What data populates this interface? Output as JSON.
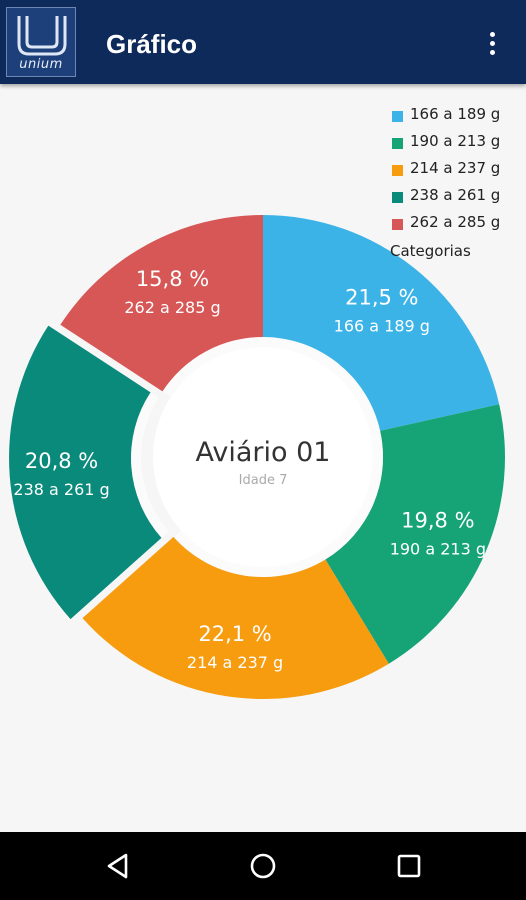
{
  "appbar": {
    "title": "Gráfico",
    "logo_text": "unium",
    "menu_icon": "overflow-menu-icon"
  },
  "chart_data": {
    "type": "pie",
    "variant": "donut",
    "center_title": "Aviário 01",
    "center_subtitle": "Idade 7",
    "legend_title": "Categorias",
    "legend_position": "top-right",
    "categories": [
      "166 a 189 g",
      "190 a 213 g",
      "214 a 237 g",
      "238 a 261 g",
      "262 a 285 g"
    ],
    "values": [
      21.5,
      19.8,
      22.1,
      20.8,
      15.8
    ],
    "value_labels": [
      "21,5 %",
      "19,8 %",
      "22,1 %",
      "20,8 %",
      "15,8 %"
    ],
    "colors": [
      "#3cb3e7",
      "#16a376",
      "#f79b0f",
      "#0a8a7b",
      "#d75656"
    ],
    "selected_index": 3
  },
  "navbar": {
    "back_icon": "back-triangle-icon",
    "home_icon": "home-circle-icon",
    "recents_icon": "recents-square-icon"
  }
}
